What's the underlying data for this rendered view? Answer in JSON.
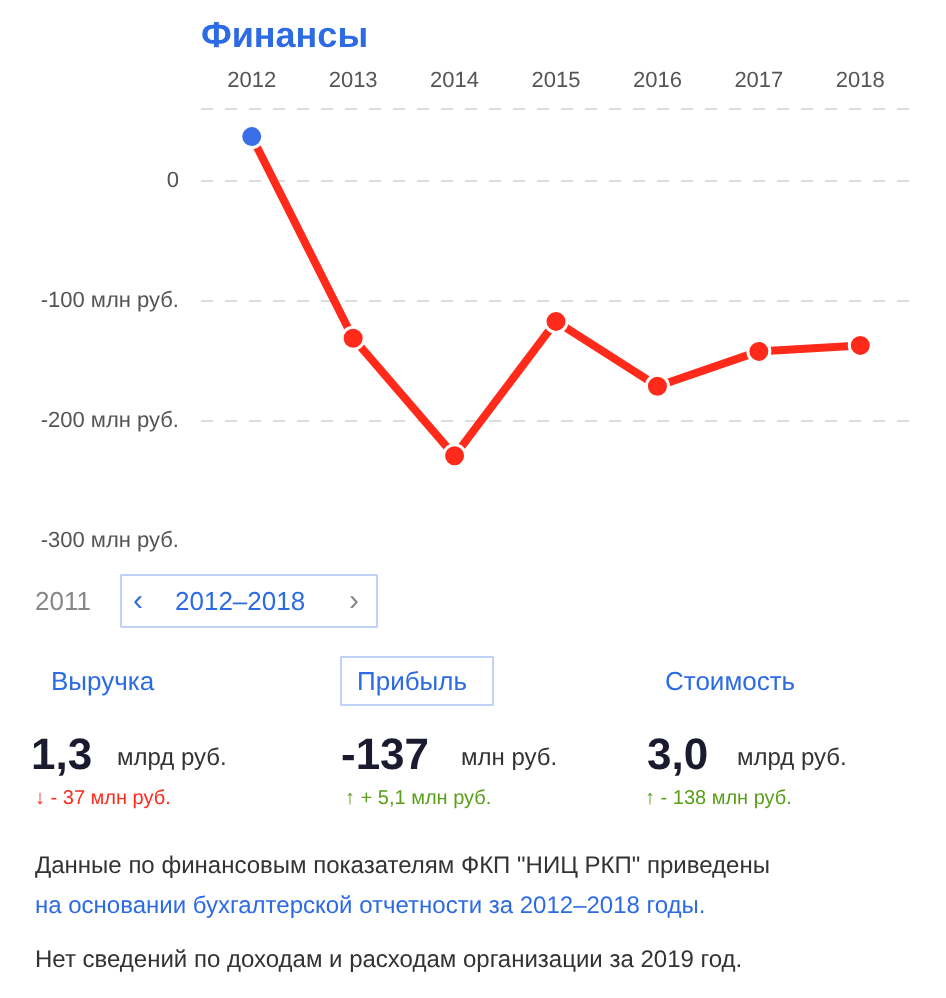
{
  "chart_data": {
    "type": "line",
    "title": "Финансы",
    "categories": [
      "2012",
      "2013",
      "2014",
      "2015",
      "2016",
      "2017",
      "2018"
    ],
    "series": [
      {
        "color": "#ff2a1a",
        "colors": [
          "#3b6fe8",
          "#ff2a1a",
          "#ff2a1a",
          "#ff2a1a",
          "#ff2a1a",
          "#ff2a1a",
          "#ff2a1a"
        ],
        "values": [
          37,
          -131,
          -229,
          -117,
          -171,
          -142,
          -137
        ]
      }
    ],
    "ylim": [
      -300,
      60
    ],
    "yticks": [
      0,
      {
        "value": -100,
        "label": "-100 млн руб."
      },
      {
        "value": -200,
        "label": "-200 млн руб."
      },
      {
        "value": -300,
        "label": "-300 млн руб."
      }
    ],
    "grid": "y",
    "marker": "circle",
    "line_style": "solid",
    "annotations": [
      "2011",
      "‹",
      "2012–2018",
      "›",
      "Выручка",
      "Прибыль",
      "Стоимость",
      "1,3",
      "млрд руб.",
      "-137",
      "млн руб.",
      "3,0",
      "млрд руб.",
      "↓ - 37 млн руб.",
      "↑ + 5,1 млн руб.",
      "↑ - 138 млн руб.",
      "Данные по финансовым показателям ФКП \"НИЦ РКП\" приведены",
      "на основании бухгалтерской отчетности за 2012–2018 годы.",
      "Нет сведений по доходам и расходам организации за 2019 год."
    ]
  }
}
